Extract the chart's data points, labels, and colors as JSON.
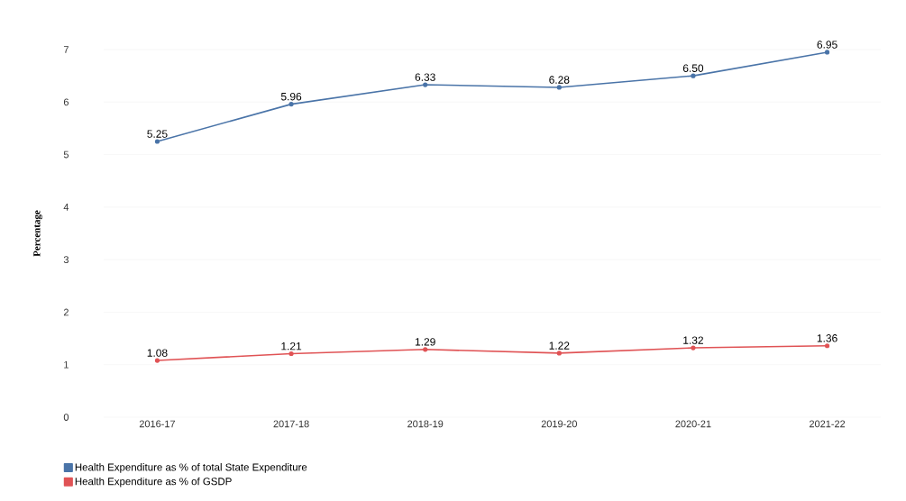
{
  "chart_data": {
    "type": "line",
    "ylabel": "Percentage",
    "categories": [
      "2016-17",
      "2017-18",
      "2018-19",
      "2019-20",
      "2020-21",
      "2021-22"
    ],
    "series": [
      {
        "name": "Health Expenditure as % of total State Expenditure",
        "color": "#4a74a8",
        "values": [
          5.25,
          5.96,
          6.33,
          6.28,
          6.5,
          6.95
        ],
        "value_labels": [
          "5.25",
          "5.96",
          "6.33",
          "6.28",
          "6.50",
          "6.95"
        ]
      },
      {
        "name": "Health Expenditure as % of GSDP",
        "color": "#e05355",
        "values": [
          1.08,
          1.21,
          1.29,
          1.22,
          1.32,
          1.36
        ],
        "value_labels": [
          "1.08",
          "1.21",
          "1.29",
          "1.22",
          "1.32",
          "1.36"
        ]
      }
    ],
    "ylim": [
      0,
      7
    ],
    "yticks": [
      0,
      1,
      2,
      3,
      4,
      5,
      6,
      7
    ],
    "grid": "y",
    "legend": "bottom left",
    "marker": "circle",
    "line_style": "solid"
  }
}
